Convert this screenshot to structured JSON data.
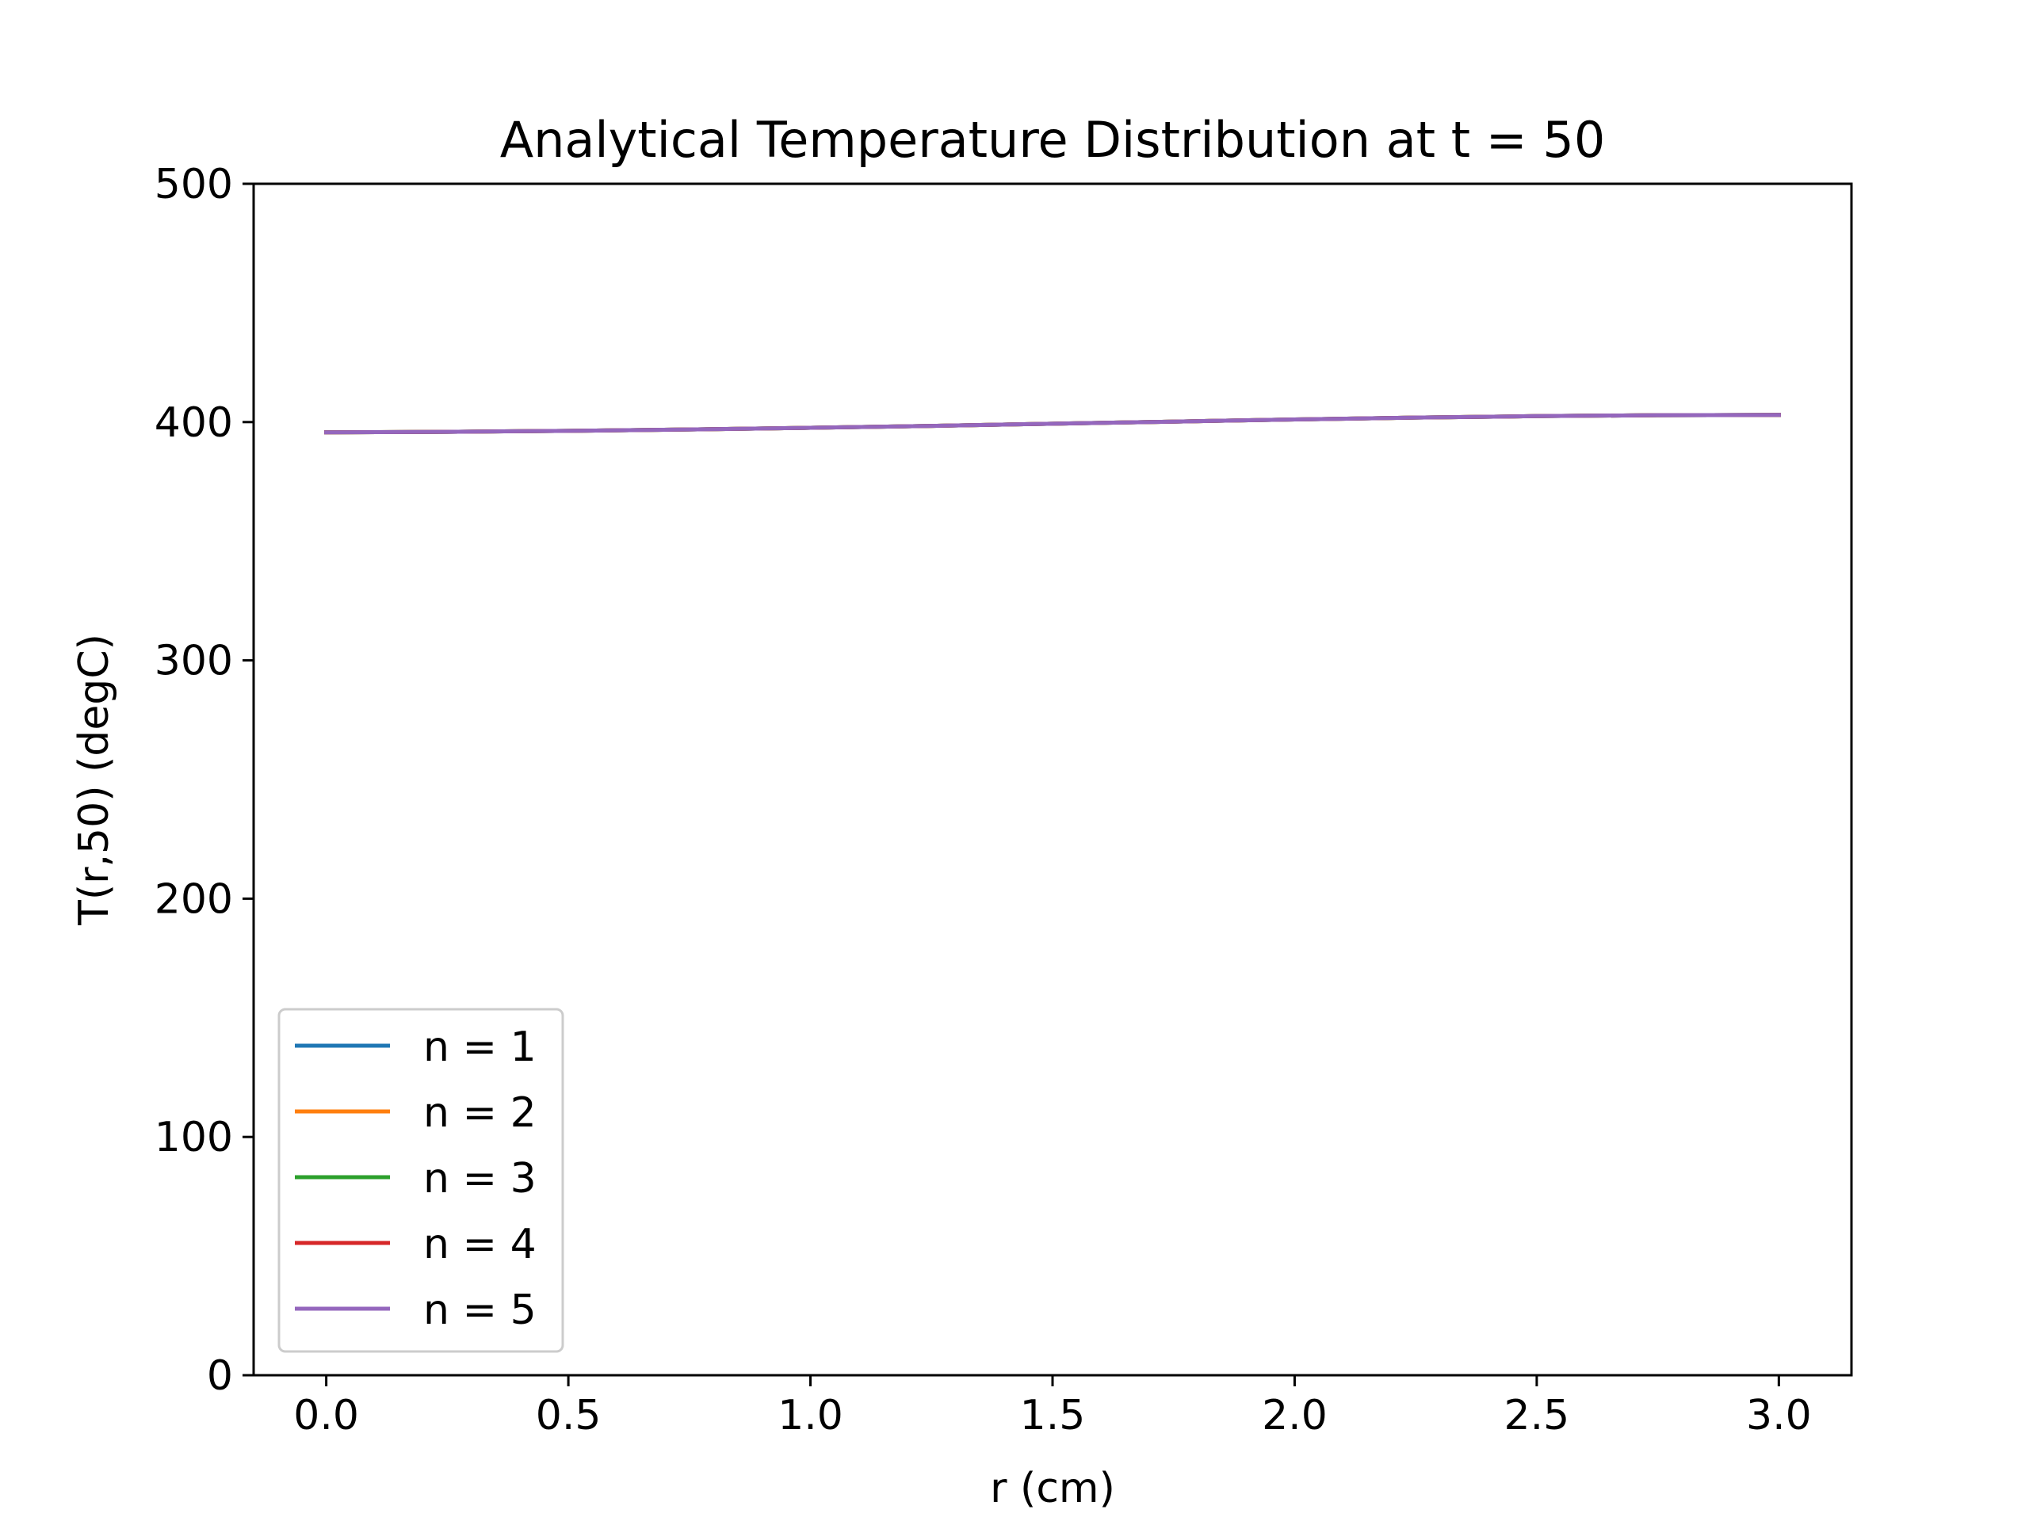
{
  "chart_data": {
    "type": "line",
    "title": "Analytical Temperature Distribution at t = 50",
    "xlabel": "r (cm)",
    "ylabel": "T(r,50) (degC)",
    "xlim": [
      -0.15,
      3.15
    ],
    "ylim": [
      0,
      500
    ],
    "xticks": [
      0.0,
      0.5,
      1.0,
      1.5,
      2.0,
      2.5,
      3.0
    ],
    "xtick_labels": [
      "0.0",
      "0.5",
      "1.0",
      "1.5",
      "2.0",
      "2.5",
      "3.0"
    ],
    "yticks": [
      0,
      100,
      200,
      300,
      400,
      500
    ],
    "ytick_labels": [
      "0",
      "100",
      "200",
      "300",
      "400",
      "500"
    ],
    "grid": false,
    "legend_position": "lower-left",
    "x": [
      0.0,
      0.25,
      0.5,
      0.75,
      1.0,
      1.25,
      1.5,
      1.75,
      2.0,
      2.25,
      2.5,
      2.75,
      3.0
    ],
    "series": [
      {
        "name": "n = 1",
        "color": "#1f77b4",
        "values": [
          395.7,
          395.9,
          396.3,
          396.9,
          397.6,
          398.4,
          399.3,
          400.2,
          401.1,
          401.9,
          402.5,
          402.9,
          403.0
        ]
      },
      {
        "name": "n = 2",
        "color": "#ff7f0e",
        "values": [
          395.7,
          395.9,
          396.3,
          396.9,
          397.6,
          398.4,
          399.3,
          400.2,
          401.1,
          401.9,
          402.5,
          402.9,
          403.0
        ]
      },
      {
        "name": "n = 3",
        "color": "#2ca02c",
        "values": [
          395.7,
          395.9,
          396.3,
          396.9,
          397.6,
          398.4,
          399.3,
          400.2,
          401.1,
          401.9,
          402.5,
          402.9,
          403.0
        ]
      },
      {
        "name": "n = 4",
        "color": "#d62728",
        "values": [
          395.7,
          395.9,
          396.3,
          396.9,
          397.6,
          398.4,
          399.3,
          400.2,
          401.1,
          401.9,
          402.5,
          402.9,
          403.0
        ]
      },
      {
        "name": "n = 5",
        "color": "#9467bd",
        "values": [
          395.7,
          395.9,
          396.3,
          396.9,
          397.6,
          398.4,
          399.3,
          400.2,
          401.1,
          401.9,
          402.5,
          402.9,
          403.0
        ]
      }
    ]
  }
}
